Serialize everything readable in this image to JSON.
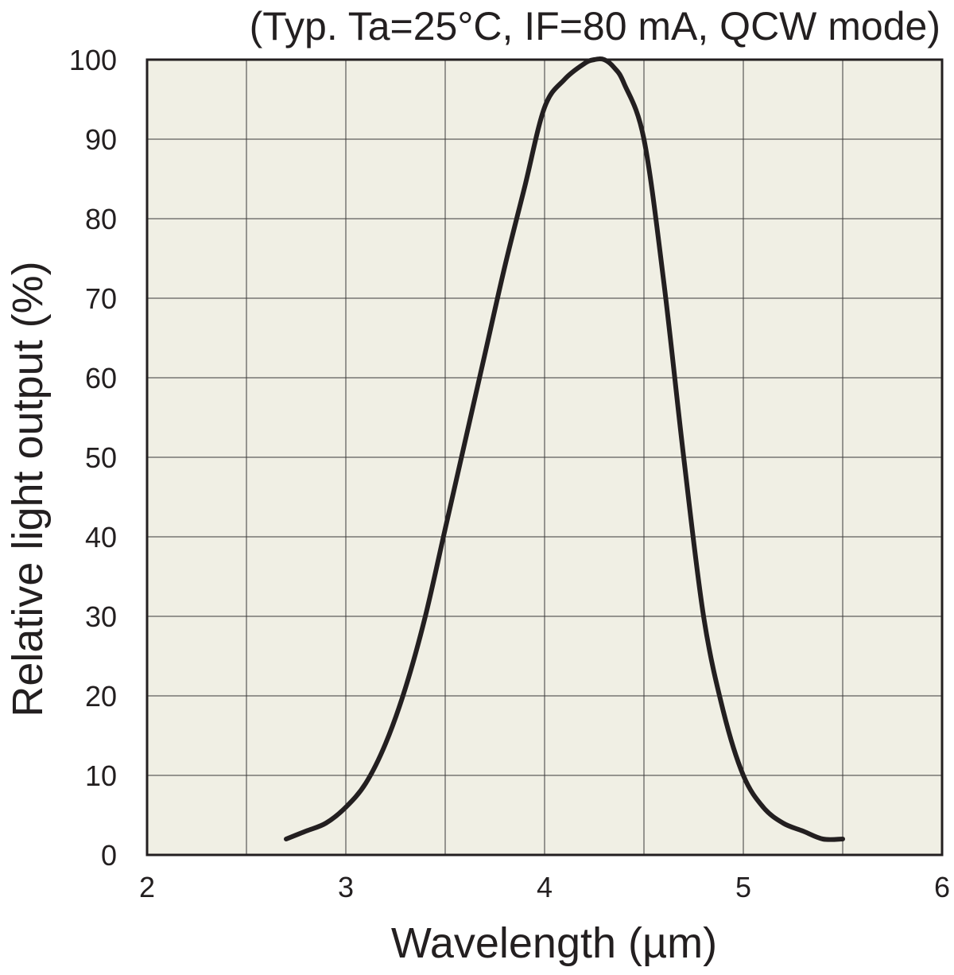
{
  "chart_data": {
    "type": "line",
    "title": "(Typ. Ta=25°C, IF=80 mA, QCW mode)",
    "xlabel": "Wavelength (µm)",
    "ylabel": "Relative light output (%)",
    "xlim": [
      2,
      6
    ],
    "ylim": [
      0,
      100
    ],
    "x_major_ticks": [
      2,
      3,
      4,
      5,
      6
    ],
    "x_tick_labels": [
      "2",
      "3",
      "4",
      "5",
      "6"
    ],
    "x_grid_step": 0.5,
    "y_ticks": [
      0,
      10,
      20,
      30,
      40,
      50,
      60,
      70,
      80,
      90,
      100
    ],
    "y_tick_labels": [
      "0",
      "10",
      "20",
      "30",
      "40",
      "50",
      "60",
      "70",
      "80",
      "90",
      "100"
    ],
    "grid": true,
    "plot_background": "#f0efe4",
    "line_color": "#231f20",
    "series": [
      {
        "name": "Relative light output",
        "x": [
          2.7,
          2.8,
          2.9,
          3.0,
          3.1,
          3.2,
          3.3,
          3.4,
          3.5,
          3.6,
          3.7,
          3.8,
          3.9,
          4.0,
          4.1,
          4.2,
          4.25,
          4.3,
          4.35,
          4.4,
          4.5,
          4.6,
          4.7,
          4.8,
          4.9,
          5.0,
          5.1,
          5.2,
          5.3,
          5.4,
          5.5
        ],
        "y": [
          2,
          3,
          4,
          6,
          9,
          14,
          21,
          30,
          41,
          52,
          63,
          74,
          84,
          94,
          97.5,
          99.5,
          100,
          100,
          99,
          97,
          90,
          72,
          50,
          30,
          18,
          10,
          6,
          4,
          3,
          2,
          2
        ]
      }
    ]
  }
}
